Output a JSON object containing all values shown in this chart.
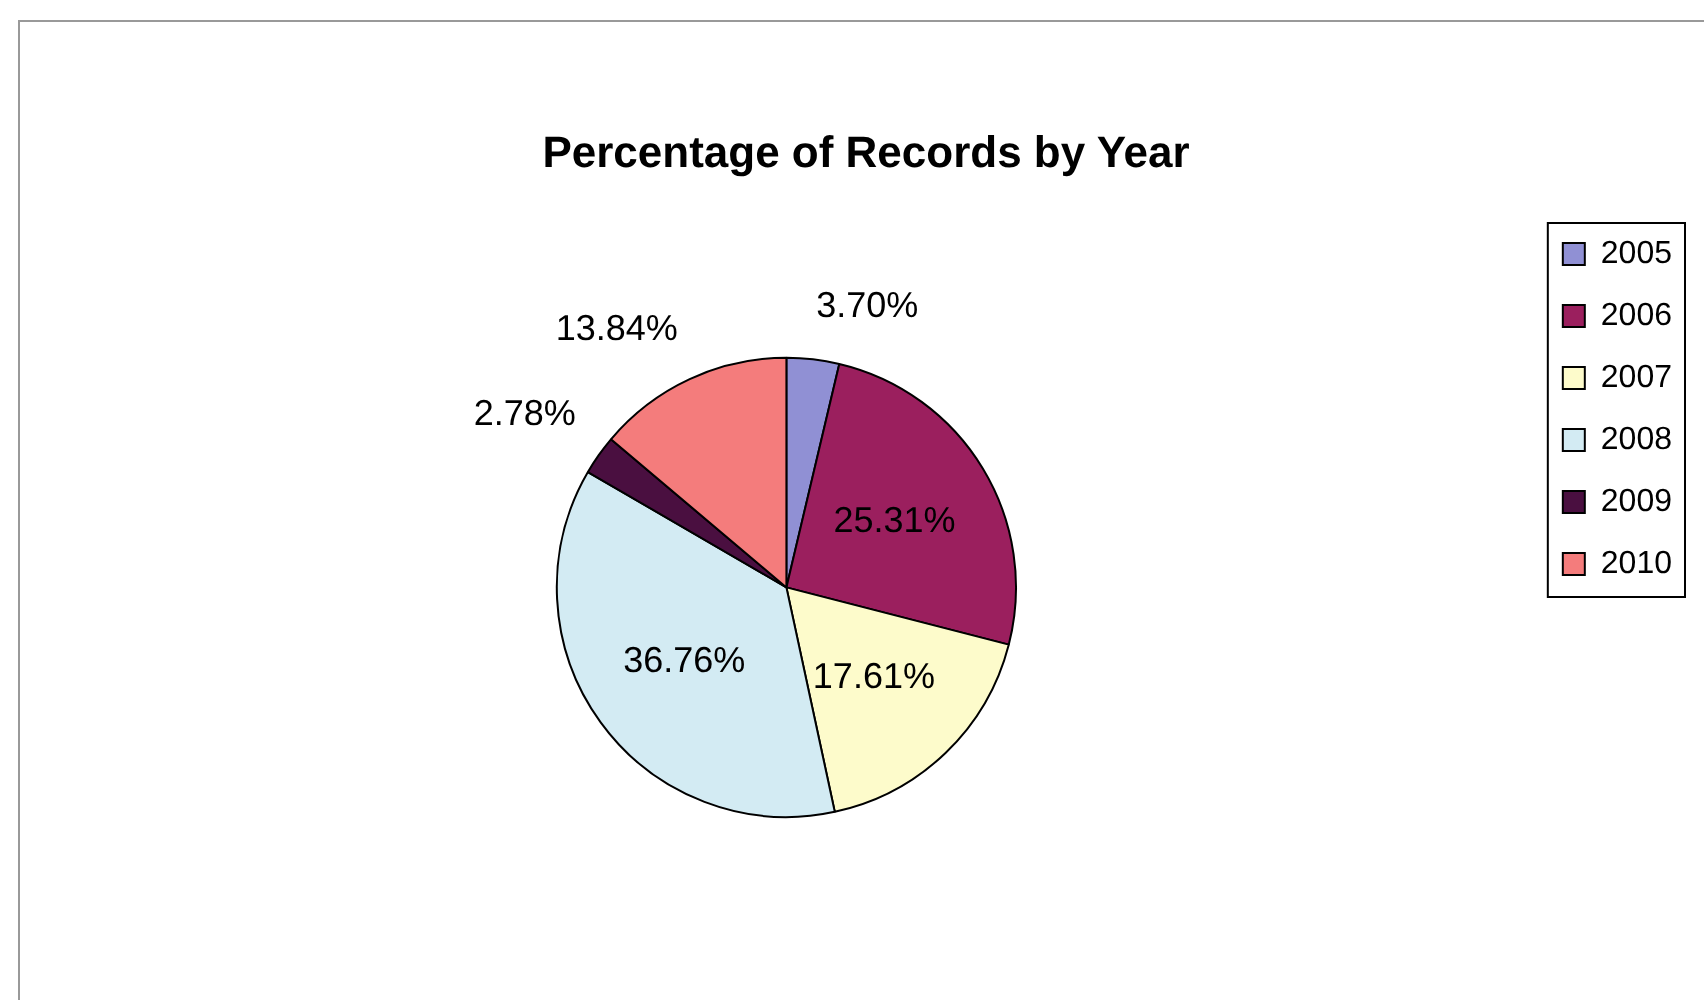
{
  "chart_data": {
    "type": "pie",
    "title": "Percentage of Records by Year",
    "categories": [
      "2005",
      "2006",
      "2007",
      "2008",
      "2009",
      "2010"
    ],
    "values": [
      3.7,
      25.31,
      17.61,
      36.76,
      2.78,
      13.84
    ],
    "value_labels": [
      "3.70%",
      "25.31%",
      "17.61%",
      "36.76%",
      "2.78%",
      "13.84%"
    ],
    "colors": [
      "#9090d4",
      "#9b1f5e",
      "#fdfbcb",
      "#d3ebf3",
      "#4a0f40",
      "#f47c7c"
    ],
    "legend": "right"
  }
}
